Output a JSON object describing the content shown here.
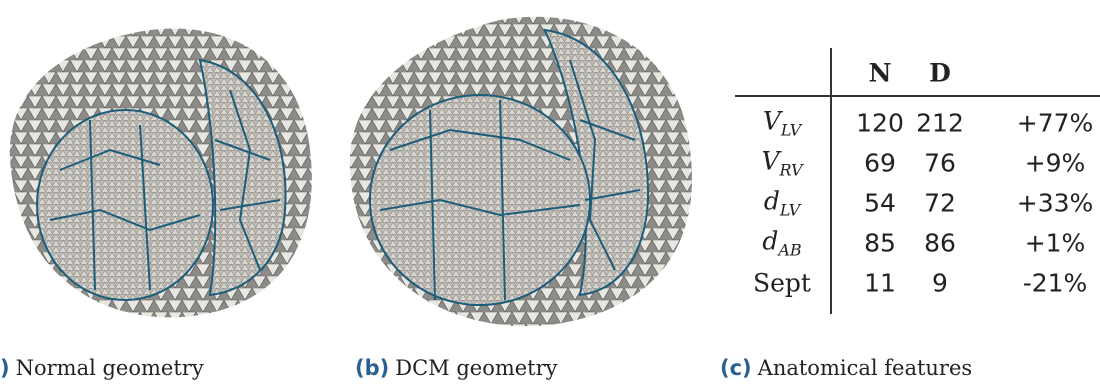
{
  "figure": {
    "panels": [
      {
        "label": ")",
        "caption": "Normal geometry"
      },
      {
        "label": "(b)",
        "caption": "DCM geometry"
      },
      {
        "label": "(c)",
        "caption": "Anatomical features"
      }
    ],
    "table": {
      "header": [
        "N",
        "D"
      ],
      "rows": [
        {
          "symbol": "V",
          "sub": "LV",
          "cells": [
            "120",
            "212",
            "+77%"
          ]
        },
        {
          "symbol": "V",
          "sub": "RV",
          "cells": [
            "69",
            "76",
            "+9%"
          ]
        },
        {
          "symbol": "d",
          "sub": "LV",
          "cells": [
            "54",
            "72",
            "+33%"
          ]
        },
        {
          "symbol": "d",
          "sub": "AB",
          "cells": [
            "85",
            "86",
            "+1%"
          ]
        },
        {
          "symbol": "Sept",
          "cells": [
            "11",
            "9",
            "-21%"
          ]
        }
      ]
    }
  }
}
